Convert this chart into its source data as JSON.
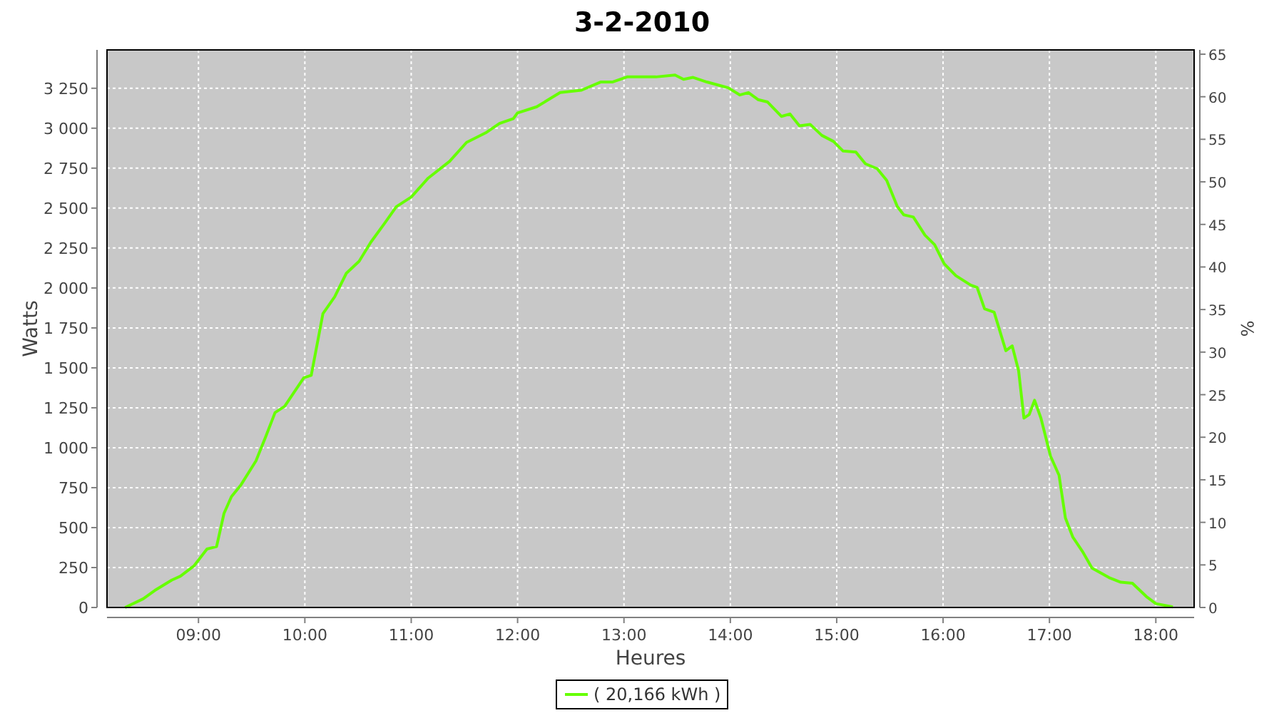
{
  "chart_data": {
    "type": "line",
    "title": "3-2-2010",
    "xlabel": "Heures",
    "ylabel": "Watts",
    "y2label": "%",
    "grid": true,
    "legend": "bottom",
    "marker": "none",
    "line_style": "solid",
    "xlim": [
      8.14,
      18.36
    ],
    "xticks": [
      {
        "value": 9,
        "label": "09:00"
      },
      {
        "value": 10,
        "label": "10:00"
      },
      {
        "value": 11,
        "label": "11:00"
      },
      {
        "value": 12,
        "label": "12:00"
      },
      {
        "value": 13,
        "label": "13:00"
      },
      {
        "value": 14,
        "label": "14:00"
      },
      {
        "value": 15,
        "label": "15:00"
      },
      {
        "value": 16,
        "label": "16:00"
      },
      {
        "value": 17,
        "label": "17:00"
      },
      {
        "value": 18,
        "label": "18:00"
      }
    ],
    "ylim": [
      0,
      3490
    ],
    "yticks": [
      0,
      250,
      500,
      750,
      {
        "value": 1000,
        "label": "1 000"
      },
      {
        "value": 1250,
        "label": "1 250"
      },
      {
        "value": 1500,
        "label": "1 500"
      },
      {
        "value": 1750,
        "label": "1 750"
      },
      {
        "value": 2000,
        "label": "2 000"
      },
      {
        "value": 2250,
        "label": "2 250"
      },
      {
        "value": 2500,
        "label": "2 500"
      },
      {
        "value": 2750,
        "label": "2 750"
      },
      {
        "value": 3000,
        "label": "3 000"
      },
      {
        "value": 3250,
        "label": "3 250"
      }
    ],
    "y2lim": [
      0,
      65.5
    ],
    "y2ticks": [
      0,
      5,
      10,
      15,
      20,
      25,
      30,
      35,
      40,
      45,
      50,
      55,
      60,
      65
    ],
    "series": [
      {
        "name": "( 20,166 kWh )",
        "color": "#66ff00",
        "x": [
          8.31,
          8.48,
          8.59,
          8.75,
          8.83,
          8.96,
          9.08,
          9.17,
          9.24,
          9.31,
          9.4,
          9.54,
          9.63,
          9.72,
          9.81,
          9.99,
          10.06,
          10.17,
          10.28,
          10.39,
          10.51,
          10.62,
          10.75,
          10.86,
          11,
          11.16,
          11.36,
          11.52,
          11.7,
          11.83,
          11.96,
          12,
          12.18,
          12.4,
          12.6,
          12.78,
          12.89,
          13.03,
          13.3,
          13.48,
          13.56,
          13.65,
          13.78,
          13.98,
          14.09,
          14.17,
          14.26,
          14.35,
          14.48,
          14.56,
          14.65,
          14.75,
          14.86,
          14.97,
          15.06,
          15.18,
          15.27,
          15.38,
          15.47,
          15.57,
          15.63,
          15.72,
          15.83,
          15.92,
          16.01,
          16.12,
          16.26,
          16.32,
          16.39,
          16.48,
          16.59,
          16.65,
          16.71,
          16.76,
          16.81,
          16.86,
          16.92,
          17.01,
          17.09,
          17.15,
          17.22,
          17.31,
          17.4,
          17.56,
          17.67,
          17.78,
          17.91,
          18,
          18.16
        ],
        "values": [
          0,
          54,
          107,
          172,
          196,
          262,
          366,
          381,
          589,
          694,
          768,
          917,
          1066,
          1220,
          1259,
          1438,
          1453,
          1839,
          1944,
          2092,
          2167,
          2286,
          2405,
          2509,
          2569,
          2688,
          2792,
          2911,
          2971,
          3030,
          3060,
          3096,
          3134,
          3223,
          3238,
          3289,
          3289,
          3321,
          3321,
          3333,
          3306,
          3318,
          3289,
          3253,
          3208,
          3223,
          3179,
          3164,
          3074,
          3089,
          3015,
          3024,
          2955,
          2917,
          2857,
          2851,
          2777,
          2747,
          2673,
          2509,
          2458,
          2444,
          2330,
          2271,
          2152,
          2077,
          2018,
          2003,
          1869,
          1848,
          1607,
          1637,
          1482,
          1185,
          1208,
          1297,
          1185,
          947,
          828,
          560,
          440,
          351,
          247,
          187,
          158,
          152,
          69,
          24,
          3
        ]
      }
    ]
  }
}
